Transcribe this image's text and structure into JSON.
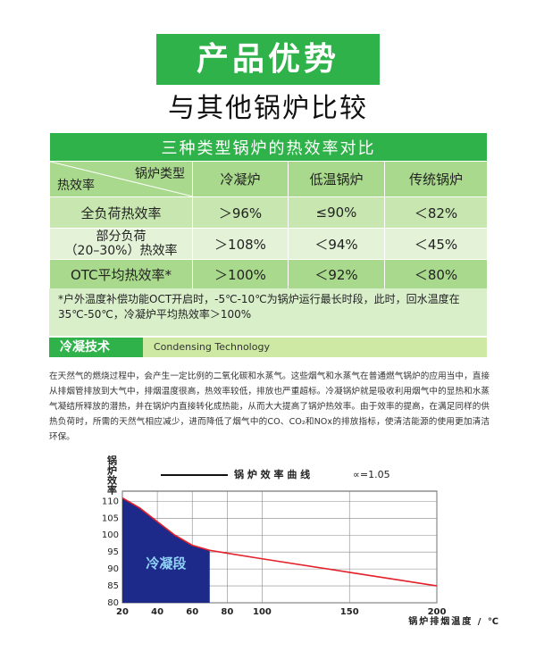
{
  "banner": "产品优势",
  "subtitle": "与其他锅炉比较",
  "table": {
    "title": "三种类型锅炉的热效率对比",
    "corner_top": "锅炉类型",
    "corner_bottom": "热效率",
    "columns": [
      "冷凝炉",
      "低温锅炉",
      "传统锅炉"
    ],
    "rows": [
      {
        "label": [
          "全负荷热效率"
        ],
        "values": [
          "＞96%",
          "≤90%",
          "＜82%"
        ]
      },
      {
        "label": [
          "部分负荷",
          "（20–30%）热效率"
        ],
        "values": [
          "＞108%",
          "＜94%",
          "＜45%"
        ]
      },
      {
        "label": [
          "OTC平均热效率*"
        ],
        "values": [
          "＞100%",
          "＜92%",
          "＜80%"
        ]
      }
    ],
    "footnote": "*户外温度补偿功能OCT开启时，-5℃-10℃为锅炉运行最长时段，此时，回水温度在35℃-50℃，冷凝炉平均热效率＞100%"
  },
  "section": {
    "title": "冷凝技术",
    "subtitle": "Condensing Technology"
  },
  "paragraph": "在天然气的燃烧过程中，会产生一定比例的二氧化碳和水蒸气。这些烟气和水蒸气在普通燃气锅炉的应用当中，直接从排烟管排放到大气中，排烟温度很高，热效率较低，排放也严重超标。冷凝锅炉就是吸收利用烟气中的显热和水蒸气凝结所释放的潜热，并在锅炉内直接转化成热能，从而大大提高了锅炉热效率。由于效率的提高，在满足同样的供热负荷时，所需的天然气相应减少，进而降低了烟气中的CO、CO₂和NOx的排放指标，使清洁能源的使用更加清洁环保。",
  "chart_data": {
    "type": "line",
    "x": [
      20,
      30,
      40,
      50,
      60,
      70,
      100,
      150,
      200
    ],
    "series": [
      {
        "name": "锅 炉 效 率 曲 线",
        "color": "#e4202a",
        "values": [
          111,
          108,
          104,
          100,
          97,
          95.5,
          93,
          89,
          85
        ]
      }
    ],
    "area": {
      "label": "冷凝段",
      "color": "#1e2a8a",
      "xlim": [
        20,
        70
      ]
    },
    "annotation": "∝=1.05",
    "ylabel": "锅炉效率",
    "xlabel": "锅炉排烟温度 / ℃",
    "xlim": [
      20,
      200
    ],
    "ylim": [
      80,
      113
    ],
    "xticks": [
      20,
      40,
      60,
      80,
      100,
      150,
      200
    ],
    "yticks": [
      80,
      85,
      90,
      95,
      100,
      105,
      110
    ],
    "grid": true
  }
}
